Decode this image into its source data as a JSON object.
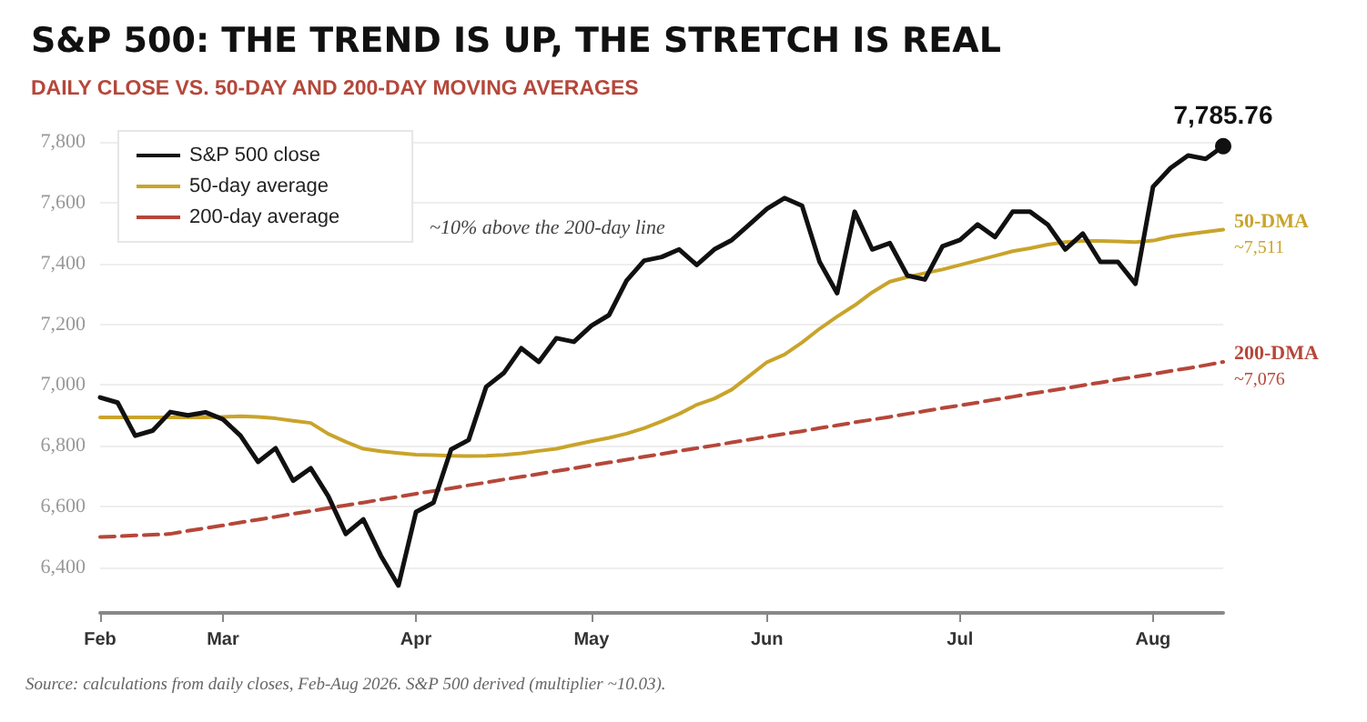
{
  "chart_data": {
    "type": "line",
    "title": "S&P 500: THE TREND IS UP, THE STRETCH IS REAL",
    "subtitle": "DAILY CLOSE VS. 50-DAY AND 200-DAY MOVING AVERAGES",
    "categories": [
      "Feb",
      null,
      null,
      null,
      null,
      null,
      null,
      "Mar",
      null,
      null,
      null,
      null,
      null,
      null,
      null,
      null,
      null,
      null,
      "Apr",
      null,
      null,
      null,
      null,
      null,
      null,
      null,
      null,
      null,
      "May",
      null,
      null,
      null,
      null,
      null,
      null,
      null,
      null,
      null,
      "Jun",
      null,
      null,
      null,
      null,
      null,
      null,
      null,
      null,
      null,
      null,
      "Jul",
      null,
      null,
      null,
      null,
      null,
      null,
      null,
      null,
      null,
      null,
      "Aug",
      null,
      null,
      null,
      null
    ],
    "series": [
      {
        "name": "S&P 500 close",
        "color": "#111111",
        "values": [
          6959,
          6942,
          6833,
          6850,
          6911,
          6900,
          6910,
          6887,
          6833,
          6747,
          6792,
          6685,
          6726,
          6634,
          6510,
          6558,
          6438,
          6340,
          6582,
          6613,
          6788,
          6819,
          6994,
          7039,
          7121,
          7076,
          7154,
          7142,
          7195,
          7230,
          7343,
          7409,
          7421,
          7446,
          7395,
          7446,
          7477,
          7528,
          7580,
          7615,
          7590,
          7405,
          7302,
          7570,
          7446,
          7467,
          7360,
          7347,
          7456,
          7477,
          7528,
          7487,
          7570,
          7570,
          7528,
          7446,
          7498,
          7405,
          7405,
          7333,
          7652,
          7714,
          7755,
          7744,
          7785.76
        ],
        "value_labels": [
          null,
          null,
          null,
          null,
          null,
          null,
          null,
          null,
          null,
          null,
          null,
          null,
          null,
          null,
          null,
          null,
          null,
          null,
          null,
          null,
          null,
          null,
          null,
          null,
          null,
          null,
          null,
          null,
          null,
          null,
          null,
          null,
          null,
          null,
          null,
          null,
          null,
          null,
          null,
          null,
          null,
          null,
          null,
          null,
          null,
          null,
          null,
          null,
          null,
          null,
          null,
          null,
          null,
          null,
          null,
          null,
          null,
          null,
          null,
          null,
          null,
          null,
          null,
          null,
          "7,785.76"
        ]
      },
      {
        "name": "50-day average",
        "color": "#c9a42b",
        "values": [
          6893,
          6893,
          6893,
          6893,
          6893,
          6893,
          6893,
          6895,
          6897,
          6895,
          6890,
          6882,
          6875,
          6839,
          6813,
          6790,
          6782,
          6776,
          6771,
          6769,
          6767,
          6766,
          6767,
          6770,
          6775,
          6783,
          6790,
          6803,
          6815,
          6826,
          6840,
          6858,
          6880,
          6905,
          6935,
          6955,
          6985,
          7030,
          7075,
          7100,
          7140,
          7185,
          7225,
          7262,
          7305,
          7340,
          7355,
          7368,
          7380,
          7395,
          7410,
          7425,
          7440,
          7450,
          7462,
          7470,
          7474,
          7474,
          7472,
          7470,
          7475,
          7488,
          7496,
          7504,
          7511
        ]
      },
      {
        "name": "200-day average",
        "color": "#b5473a",
        "line_style": "dashed",
        "values": [
          6500,
          6502,
          6505,
          6507,
          6510,
          6520,
          6529,
          6538,
          6548,
          6557,
          6566,
          6576,
          6585,
          6595,
          6604,
          6613,
          6623,
          6632,
          6642,
          6651,
          6660,
          6670,
          6679,
          6689,
          6698,
          6707,
          6717,
          6726,
          6736,
          6745,
          6754,
          6764,
          6773,
          6783,
          6792,
          6801,
          6811,
          6820,
          6830,
          6839,
          6848,
          6858,
          6867,
          6877,
          6886,
          6895,
          6905,
          6914,
          6924,
          6933,
          6942,
          6952,
          6961,
          6971,
          6980,
          6989,
          6999,
          7008,
          7018,
          7027,
          7036,
          7046,
          7055,
          7065,
          7076
        ]
      }
    ],
    "ylim": [
      6250,
      7800
    ],
    "yticks": [
      {
        "value": 6400,
        "label": "6,400"
      },
      {
        "value": 6600,
        "label": "6,600"
      },
      {
        "value": 6800,
        "label": "6,800"
      },
      {
        "value": 7000,
        "label": "7,000"
      },
      {
        "value": 7200,
        "label": "7,200"
      },
      {
        "value": 7400,
        "label": "7,400"
      },
      {
        "value": 7600,
        "label": "7,600"
      },
      {
        "value": 7800,
        "label": "7,800"
      }
    ],
    "grid": "y",
    "legend": "top left",
    "marker": "none",
    "annotations": [
      "~10% above the 200-day line",
      "50-DMA",
      "~7,511",
      "200-DMA",
      "~7,076",
      "Source: calculations from daily closes, Feb-Aug 2026. S&P 500 derived (multiplier ~10.03)."
    ]
  }
}
